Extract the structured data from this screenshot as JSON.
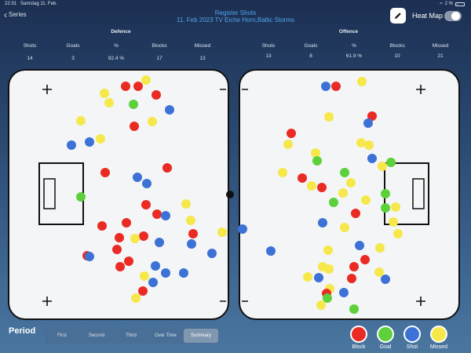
{
  "status": {
    "time": "22:31",
    "date": "Samstag 11. Feb.",
    "battery": "2 %"
  },
  "nav": {
    "back_label": "Series"
  },
  "header": {
    "title_line1": "Register Shots",
    "title_line2": "11. Feb 2023  TV Eiche Horn,Baltic Storms"
  },
  "heatmap": {
    "label": "Heat Map",
    "enabled": false
  },
  "defence": {
    "title": "Defence",
    "labels": [
      "Shots",
      "Goals",
      "%",
      "Blocks",
      "Missed"
    ],
    "values": [
      "14",
      "3",
      "82.4 %",
      "17",
      "13"
    ]
  },
  "offence": {
    "title": "Offence",
    "labels": [
      "Shots",
      "Goals",
      "%",
      "Blocks",
      "Missed"
    ],
    "values": [
      "13",
      "8",
      "61.9 %",
      "10",
      "21"
    ]
  },
  "period": {
    "label": "Period",
    "options": [
      "First",
      "Second",
      "Third",
      "Over Time",
      "Summary"
    ],
    "selected": "Summary"
  },
  "legend": [
    {
      "key": "block",
      "label": "Block",
      "color": "#ea2b24"
    },
    {
      "key": "goal",
      "label": "Goal",
      "color": "#5cd13b"
    },
    {
      "key": "shot",
      "label": "Shot",
      "color": "#3c72d6"
    },
    {
      "key": "missed",
      "label": "Missed",
      "color": "#f6e84a"
    }
  ]
}
